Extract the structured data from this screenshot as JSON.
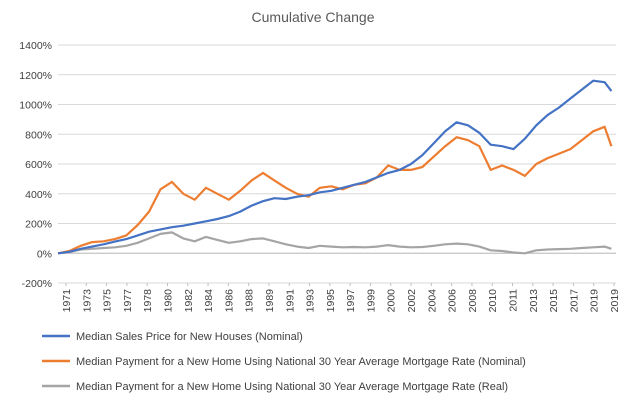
{
  "chart_data": {
    "type": "line",
    "title": "Cumulative Change",
    "xlabel": "",
    "ylabel": "",
    "ylim": [
      -200,
      1400
    ],
    "y_ticks": [
      "-200%",
      "0%",
      "200%",
      "400%",
      "600%",
      "800%",
      "1000%",
      "1200%",
      "1400%"
    ],
    "x_ticks": [
      "1971",
      "1973",
      "1975",
      "1977",
      "1978",
      "1980",
      "1982",
      "1984",
      "1986",
      "1988",
      "1989",
      "1991",
      "1993",
      "1995",
      "1997",
      "1999",
      "2000",
      "2002",
      "2004",
      "2006",
      "2008",
      "2010",
      "2011",
      "2013",
      "2015",
      "2017",
      "2019",
      "2019"
    ],
    "x_range": [
      1971,
      2020
    ],
    "grid": "horizontal",
    "legend_position": "bottom",
    "series": [
      {
        "name": "Median Sales Price for New Houses (Nominal)",
        "color": "#4472C4",
        "points": [
          [
            1971,
            0
          ],
          [
            1972,
            10
          ],
          [
            1973,
            30
          ],
          [
            1974,
            45
          ],
          [
            1975,
            60
          ],
          [
            1976,
            78
          ],
          [
            1977,
            95
          ],
          [
            1978,
            120
          ],
          [
            1979,
            145
          ],
          [
            1980,
            160
          ],
          [
            1981,
            175
          ],
          [
            1982,
            185
          ],
          [
            1983,
            200
          ],
          [
            1984,
            215
          ],
          [
            1985,
            230
          ],
          [
            1986,
            250
          ],
          [
            1987,
            280
          ],
          [
            1988,
            320
          ],
          [
            1989,
            350
          ],
          [
            1990,
            370
          ],
          [
            1991,
            365
          ],
          [
            1992,
            380
          ],
          [
            1993,
            390
          ],
          [
            1994,
            410
          ],
          [
            1995,
            420
          ],
          [
            1996,
            440
          ],
          [
            1997,
            460
          ],
          [
            1998,
            480
          ],
          [
            1999,
            510
          ],
          [
            2000,
            540
          ],
          [
            2001,
            560
          ],
          [
            2002,
            600
          ],
          [
            2003,
            660
          ],
          [
            2004,
            740
          ],
          [
            2005,
            820
          ],
          [
            2006,
            880
          ],
          [
            2007,
            860
          ],
          [
            2008,
            810
          ],
          [
            2009,
            730
          ],
          [
            2010,
            720
          ],
          [
            2011,
            700
          ],
          [
            2012,
            770
          ],
          [
            2013,
            860
          ],
          [
            2014,
            930
          ],
          [
            2015,
            980
          ],
          [
            2016,
            1040
          ],
          [
            2017,
            1100
          ],
          [
            2018,
            1160
          ],
          [
            2019,
            1150
          ],
          [
            2019.6,
            1090
          ]
        ]
      },
      {
        "name": "Median Payment for a New Home Using National 30 Year Average Mortgage Rate (Nominal)",
        "color": "#ED7D31",
        "points": [
          [
            1971,
            0
          ],
          [
            1972,
            15
          ],
          [
            1973,
            50
          ],
          [
            1974,
            75
          ],
          [
            1975,
            80
          ],
          [
            1976,
            95
          ],
          [
            1977,
            120
          ],
          [
            1978,
            190
          ],
          [
            1979,
            280
          ],
          [
            1980,
            430
          ],
          [
            1981,
            480
          ],
          [
            1982,
            400
          ],
          [
            1983,
            360
          ],
          [
            1984,
            440
          ],
          [
            1985,
            400
          ],
          [
            1986,
            360
          ],
          [
            1987,
            420
          ],
          [
            1988,
            490
          ],
          [
            1989,
            540
          ],
          [
            1990,
            490
          ],
          [
            1991,
            440
          ],
          [
            1992,
            400
          ],
          [
            1993,
            380
          ],
          [
            1994,
            440
          ],
          [
            1995,
            450
          ],
          [
            1996,
            430
          ],
          [
            1997,
            460
          ],
          [
            1998,
            470
          ],
          [
            1999,
            510
          ],
          [
            2000,
            590
          ],
          [
            2001,
            560
          ],
          [
            2002,
            560
          ],
          [
            2003,
            580
          ],
          [
            2004,
            650
          ],
          [
            2005,
            720
          ],
          [
            2006,
            780
          ],
          [
            2007,
            760
          ],
          [
            2008,
            720
          ],
          [
            2009,
            560
          ],
          [
            2010,
            590
          ],
          [
            2011,
            560
          ],
          [
            2012,
            520
          ],
          [
            2013,
            600
          ],
          [
            2014,
            640
          ],
          [
            2015,
            670
          ],
          [
            2016,
            700
          ],
          [
            2017,
            760
          ],
          [
            2018,
            820
          ],
          [
            2019,
            850
          ],
          [
            2019.6,
            720
          ]
        ]
      },
      {
        "name": "Median Payment for a New Home Using National 30 Year Average Mortgage Rate (Real)",
        "color": "#A5A5A5",
        "points": [
          [
            1971,
            0
          ],
          [
            1972,
            8
          ],
          [
            1973,
            25
          ],
          [
            1974,
            30
          ],
          [
            1975,
            35
          ],
          [
            1976,
            40
          ],
          [
            1977,
            50
          ],
          [
            1978,
            70
          ],
          [
            1979,
            100
          ],
          [
            1980,
            130
          ],
          [
            1981,
            140
          ],
          [
            1982,
            100
          ],
          [
            1983,
            80
          ],
          [
            1984,
            110
          ],
          [
            1985,
            90
          ],
          [
            1986,
            70
          ],
          [
            1987,
            80
          ],
          [
            1988,
            95
          ],
          [
            1989,
            100
          ],
          [
            1990,
            80
          ],
          [
            1991,
            60
          ],
          [
            1992,
            45
          ],
          [
            1993,
            35
          ],
          [
            1994,
            50
          ],
          [
            1995,
            45
          ],
          [
            1996,
            40
          ],
          [
            1997,
            42
          ],
          [
            1998,
            40
          ],
          [
            1999,
            45
          ],
          [
            2000,
            55
          ],
          [
            2001,
            45
          ],
          [
            2002,
            40
          ],
          [
            2003,
            42
          ],
          [
            2004,
            50
          ],
          [
            2005,
            60
          ],
          [
            2006,
            65
          ],
          [
            2007,
            60
          ],
          [
            2008,
            45
          ],
          [
            2009,
            20
          ],
          [
            2010,
            15
          ],
          [
            2011,
            5
          ],
          [
            2012,
            0
          ],
          [
            2013,
            20
          ],
          [
            2014,
            25
          ],
          [
            2015,
            28
          ],
          [
            2016,
            30
          ],
          [
            2017,
            35
          ],
          [
            2018,
            40
          ],
          [
            2019,
            45
          ],
          [
            2019.6,
            30
          ]
        ]
      }
    ]
  }
}
